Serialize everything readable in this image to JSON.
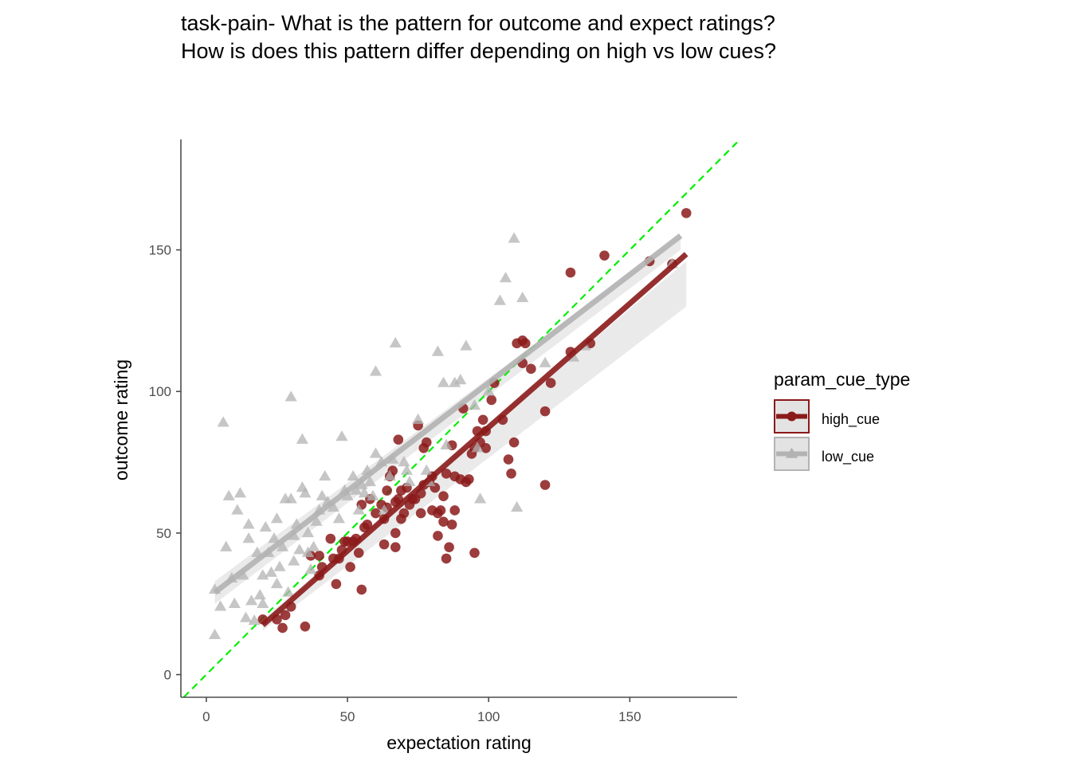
{
  "title": {
    "line1": "task-pain- What is the pattern for outcome and expect ratings?",
    "line2": "How is does this pattern differ depending on high vs low cues?"
  },
  "colors": {
    "high_cue": "#8b1a1a",
    "low_cue": "#b3b3b3",
    "identity_line": "#00ee00",
    "axis": "#4d4d4d"
  },
  "chart_data": {
    "type": "scatter",
    "xlabel": "expectation rating",
    "ylabel": "outcome rating",
    "xlim": [
      -9,
      188
    ],
    "ylim": [
      -8,
      189
    ],
    "x_ticks": [
      0,
      50,
      100,
      150
    ],
    "y_ticks": [
      0,
      50,
      100,
      150
    ],
    "grid": false,
    "identity_line": {
      "style": "dashed",
      "slope": 1,
      "intercept": 0
    },
    "legend": {
      "title": "param_cue_type",
      "placement": "right",
      "entries": [
        "high_cue",
        "low_cue"
      ]
    },
    "series": [
      {
        "name": "high_cue",
        "marker": "circle",
        "fit": {
          "x": [
            20,
            170
          ],
          "y": [
            17.5,
            148.5
          ],
          "ci_upper_end": 146,
          "ci_lower_end": 130,
          "ci_start_halfwidth": 2
        },
        "points": [
          [
            20,
            19.5
          ],
          [
            25,
            19.5
          ],
          [
            27,
            16.5
          ],
          [
            28,
            21
          ],
          [
            30,
            24
          ],
          [
            35,
            17
          ],
          [
            37,
            42
          ],
          [
            40,
            42
          ],
          [
            40,
            35
          ],
          [
            41,
            38
          ],
          [
            44,
            48
          ],
          [
            45,
            41
          ],
          [
            46,
            32
          ],
          [
            47,
            41
          ],
          [
            48,
            44
          ],
          [
            49,
            47
          ],
          [
            50,
            47
          ],
          [
            51,
            38
          ],
          [
            52,
            47
          ],
          [
            53,
            48
          ],
          [
            54,
            43
          ],
          [
            55,
            30
          ],
          [
            55,
            60
          ],
          [
            56,
            52
          ],
          [
            57,
            53
          ],
          [
            58,
            62
          ],
          [
            60,
            57
          ],
          [
            62,
            60
          ],
          [
            63,
            46
          ],
          [
            63,
            55
          ],
          [
            64,
            59
          ],
          [
            64,
            65
          ],
          [
            65,
            70
          ],
          [
            66,
            72
          ],
          [
            67,
            61
          ],
          [
            67,
            50
          ],
          [
            67,
            45
          ],
          [
            68,
            83
          ],
          [
            68,
            62
          ],
          [
            69,
            65
          ],
          [
            69,
            55
          ],
          [
            70,
            57
          ],
          [
            71,
            66
          ],
          [
            72,
            60
          ],
          [
            73,
            62
          ],
          [
            74,
            62
          ],
          [
            75,
            88
          ],
          [
            76,
            64
          ],
          [
            76,
            57
          ],
          [
            77,
            80
          ],
          [
            77,
            67
          ],
          [
            78,
            82
          ],
          [
            79,
            68
          ],
          [
            80,
            70
          ],
          [
            80,
            58
          ],
          [
            81,
            66
          ],
          [
            82,
            57
          ],
          [
            82,
            49
          ],
          [
            83,
            58
          ],
          [
            84,
            63
          ],
          [
            84,
            54
          ],
          [
            85,
            41
          ],
          [
            85,
            71
          ],
          [
            86,
            45
          ],
          [
            87,
            81
          ],
          [
            87,
            53
          ],
          [
            88,
            58
          ],
          [
            88,
            70
          ],
          [
            90,
            69
          ],
          [
            91,
            94
          ],
          [
            92,
            68
          ],
          [
            93,
            69
          ],
          [
            94,
            78
          ],
          [
            95,
            43
          ],
          [
            95,
            80
          ],
          [
            96,
            86
          ],
          [
            97,
            82
          ],
          [
            98,
            90
          ],
          [
            99,
            86
          ],
          [
            99,
            80
          ],
          [
            101,
            97
          ],
          [
            102,
            103
          ],
          [
            105,
            90
          ],
          [
            107,
            76
          ],
          [
            108,
            71
          ],
          [
            109,
            82
          ],
          [
            110,
            117
          ],
          [
            112,
            118
          ],
          [
            112,
            110
          ],
          [
            113,
            117
          ],
          [
            115,
            108
          ],
          [
            120,
            67
          ],
          [
            120,
            93
          ],
          [
            122,
            103
          ],
          [
            129,
            142
          ],
          [
            129,
            114
          ],
          [
            136,
            117
          ],
          [
            141,
            148
          ],
          [
            157,
            146
          ],
          [
            165,
            145
          ],
          [
            170,
            163
          ]
        ]
      },
      {
        "name": "low_cue",
        "marker": "triangle",
        "fit": {
          "x": [
            3,
            168
          ],
          "y": [
            29,
            155
          ],
          "ci_upper_end": 155,
          "ci_lower_end": 150,
          "ci_start_halfwidth": 4
        },
        "points": [
          [
            3,
            30
          ],
          [
            3,
            14
          ],
          [
            5,
            24
          ],
          [
            6,
            89
          ],
          [
            7,
            45
          ],
          [
            8,
            63
          ],
          [
            9,
            34
          ],
          [
            10,
            25
          ],
          [
            11,
            58
          ],
          [
            12,
            64
          ],
          [
            13,
            35
          ],
          [
            14,
            20
          ],
          [
            15,
            53
          ],
          [
            15,
            48
          ],
          [
            16,
            26
          ],
          [
            17,
            19
          ],
          [
            18,
            43
          ],
          [
            19,
            28
          ],
          [
            20,
            35
          ],
          [
            20,
            25
          ],
          [
            21,
            52
          ],
          [
            22,
            43
          ],
          [
            23,
            36
          ],
          [
            24,
            48
          ],
          [
            25,
            55
          ],
          [
            25,
            32
          ],
          [
            26,
            38
          ],
          [
            27,
            45
          ],
          [
            28,
            62
          ],
          [
            29,
            29
          ],
          [
            30,
            62
          ],
          [
            30,
            98
          ],
          [
            31,
            49
          ],
          [
            31,
            40
          ],
          [
            32,
            53
          ],
          [
            33,
            44
          ],
          [
            34,
            66
          ],
          [
            34,
            83
          ],
          [
            35,
            64
          ],
          [
            36,
            43
          ],
          [
            36,
            50
          ],
          [
            37,
            37
          ],
          [
            38,
            45
          ],
          [
            39,
            54
          ],
          [
            40,
            58
          ],
          [
            41,
            63
          ],
          [
            42,
            70
          ],
          [
            43,
            61
          ],
          [
            45,
            59
          ],
          [
            47,
            55
          ],
          [
            48,
            84
          ],
          [
            49,
            65
          ],
          [
            50,
            63
          ],
          [
            52,
            70
          ],
          [
            53,
            65
          ],
          [
            54,
            58
          ],
          [
            55,
            67
          ],
          [
            56,
            64
          ],
          [
            57,
            72
          ],
          [
            58,
            68
          ],
          [
            59,
            63
          ],
          [
            60,
            78
          ],
          [
            60,
            107
          ],
          [
            62,
            75
          ],
          [
            63,
            58
          ],
          [
            65,
            70
          ],
          [
            66,
            76
          ],
          [
            67,
            117
          ],
          [
            70,
            75
          ],
          [
            71,
            72
          ],
          [
            72,
            68
          ],
          [
            75,
            90
          ],
          [
            78,
            72
          ],
          [
            79,
            68
          ],
          [
            82,
            114
          ],
          [
            84,
            103
          ],
          [
            85,
            81
          ],
          [
            88,
            103
          ],
          [
            90,
            104
          ],
          [
            92,
            116
          ],
          [
            95,
            95
          ],
          [
            96,
            80
          ],
          [
            97,
            62
          ],
          [
            100,
            100
          ],
          [
            104,
            132
          ],
          [
            106,
            140
          ],
          [
            109,
            154
          ],
          [
            110,
            59
          ],
          [
            112,
            133
          ],
          [
            120,
            110
          ],
          [
            130,
            112
          ],
          [
            134,
            116
          ],
          [
            165,
            145
          ]
        ]
      }
    ]
  }
}
